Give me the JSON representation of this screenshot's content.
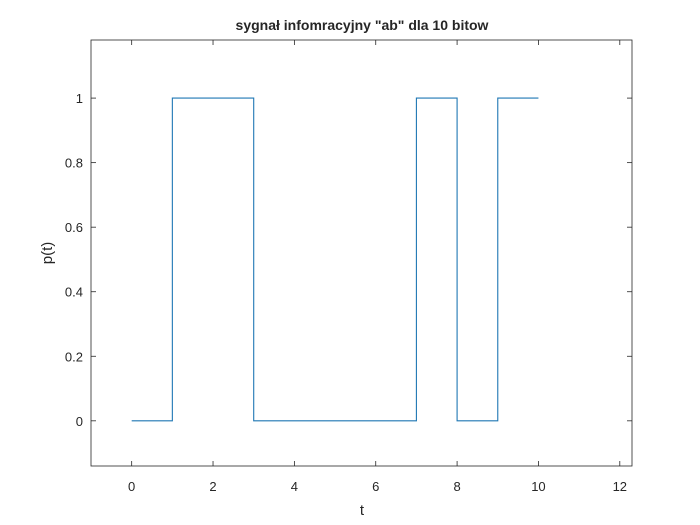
{
  "chart_data": {
    "type": "line",
    "title": "sygnał infomracyjny \"ab\" dla 10 bitow",
    "xlabel": "t",
    "ylabel": "p(t)",
    "xlim": [
      -1,
      12.3
    ],
    "ylim": [
      -0.14,
      1.18
    ],
    "xticks": [
      0,
      2,
      4,
      6,
      8,
      10,
      12
    ],
    "yticks": [
      0,
      0.2,
      0.4,
      0.6,
      0.8,
      1
    ],
    "ytick_labels": [
      "0",
      "0.2",
      "0.4",
      "0.6",
      "0.8",
      "1"
    ],
    "grid": false,
    "series": [
      {
        "color": "#1f77b4",
        "x": [
          0,
          1,
          1,
          3,
          3,
          7,
          7,
          8,
          8,
          9,
          9,
          10
        ],
        "y": [
          0,
          0,
          1,
          1,
          0,
          0,
          1,
          1,
          0,
          0,
          1,
          1
        ]
      }
    ]
  }
}
